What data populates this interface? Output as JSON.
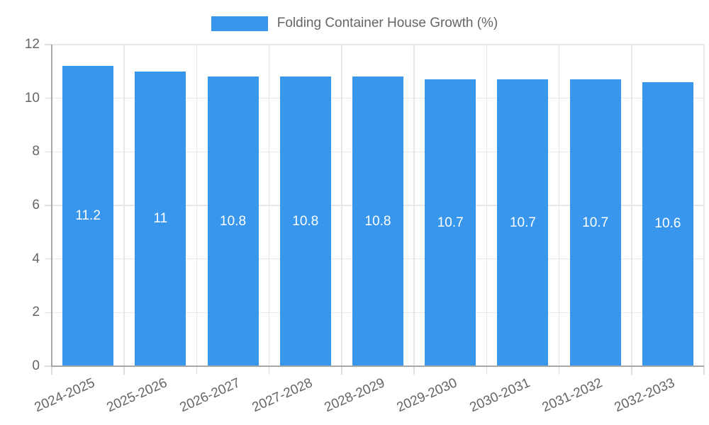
{
  "legend": {
    "label": "Folding Container House Growth (%)"
  },
  "chart_data": {
    "type": "bar",
    "title": "Folding Container House Growth (%)",
    "categories": [
      "2024-2025",
      "2025-2026",
      "2026-2027",
      "2027-2028",
      "2028-2029",
      "2029-2030",
      "2030-2031",
      "2031-2032",
      "2032-2033"
    ],
    "values": [
      11.2,
      11,
      10.8,
      10.8,
      10.8,
      10.7,
      10.7,
      10.7,
      10.6
    ],
    "value_labels": [
      "11.2",
      "11",
      "10.8",
      "10.8",
      "10.8",
      "10.7",
      "10.7",
      "10.7",
      "10.6"
    ],
    "xlabel": "",
    "ylabel": "",
    "ylim": [
      0,
      12
    ],
    "yticks": [
      0,
      2,
      4,
      6,
      8,
      10,
      12
    ],
    "grid": true,
    "legend_position": "top",
    "x_label_rotation_deg": -24,
    "colors": {
      "bar": "#3897ec",
      "value_label": "#ffffff",
      "grid": "#e8e8e8",
      "axis": "#a8a8a8",
      "tick_mark": "#dedede",
      "tick_label": "#666666",
      "legend_label": "#666666"
    }
  }
}
